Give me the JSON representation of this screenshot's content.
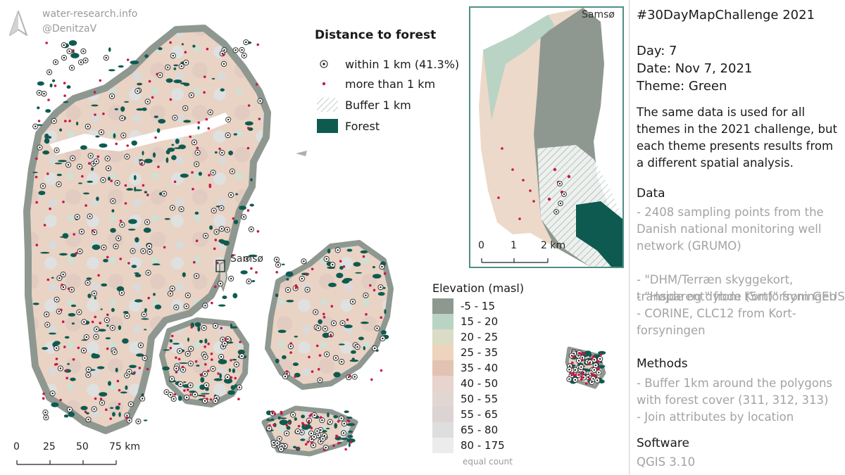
{
  "credits": {
    "site": "water-research.info",
    "author": "@DenitzaV"
  },
  "legend": {
    "title": "Distance to forest",
    "items": [
      {
        "label": "within 1 km (41.3%)",
        "symbol": "ringed-dot-icon"
      },
      {
        "label": "more than 1 km",
        "symbol": "red-dot-icon"
      },
      {
        "label": "Buffer 1 km",
        "symbol": "hatch-swatch"
      },
      {
        "label": "Forest",
        "symbol": "forest-swatch"
      }
    ]
  },
  "elevation_legend": {
    "title": "Elevation (masl)",
    "classes": [
      {
        "label": "-5 - 15",
        "color": "#8e9890"
      },
      {
        "label": "15 - 20",
        "color": "#b9d4c4"
      },
      {
        "label": "20 - 25",
        "color": "#dbdcc6"
      },
      {
        "label": "25 - 35",
        "color": "#eed4bd"
      },
      {
        "label": "35 - 40",
        "color": "#e3c2b3"
      },
      {
        "label": "40 - 50",
        "color": "#e7d4cd"
      },
      {
        "label": "50 - 55",
        "color": "#e2d6d3"
      },
      {
        "label": "55 - 65",
        "color": "#dcd4d3"
      },
      {
        "label": "65 - 80",
        "color": "#dedede"
      },
      {
        "label": "80 - 175",
        "color": "#ececec"
      }
    ],
    "note": "equal count"
  },
  "labels": {
    "samso_map": "Samsø",
    "samso_inset": "Samsø"
  },
  "scalebar_main": {
    "ticks": [
      "0",
      "25",
      "50",
      "75 km"
    ]
  },
  "scalebar_inset": {
    "ticks": [
      "0",
      "1",
      "2 km"
    ]
  },
  "colors": {
    "forest": "#0f5a50",
    "point_red": "#c8174a",
    "land_low": "#8e9890",
    "land_mid": "#eed4bd",
    "inset_border": "#4f8f85"
  },
  "side": {
    "challenge": "#30DayMapChallenge 2021",
    "day": "Day: 7",
    "date": "Date: Nov 7, 2021",
    "theme": "Theme: Green",
    "intro": "The same data is used for all themes in the 2021 challenge, but each theme presents results from a different spatial analysis.",
    "data_heading": "Data",
    "data_items": [
      "- 2408 sampling points from the Danish national monitoring well network (GRUMO)",
      "- \"DHM/Terræn skyggekort, transparent\" from Kortforsyningen",
      "- \"Højde og dybde (5m)\" from GEUS",
      "- CORINE, CLC12 from Kort-forsyningen"
    ],
    "methods_heading": "Methods",
    "methods_items": [
      "- Buffer 1km around the polygons with forest cover (311, 312, 313)",
      "- Join attributes by location"
    ],
    "software_heading": "Software",
    "software": "QGIS 3.10"
  }
}
